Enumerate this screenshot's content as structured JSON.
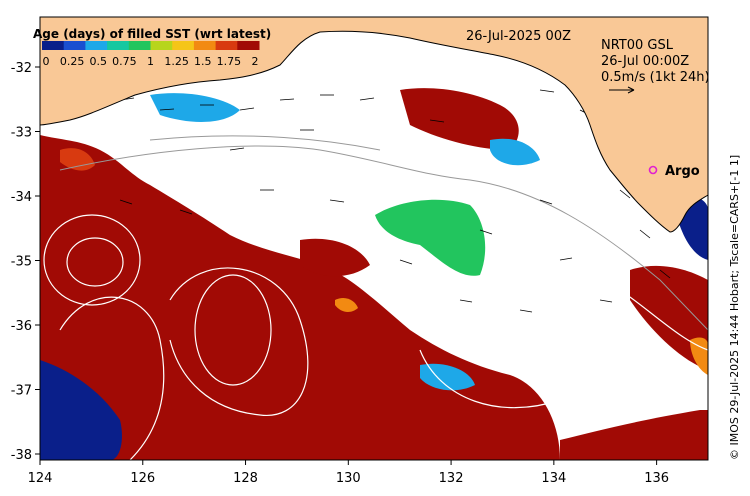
{
  "legend": {
    "title": "Age (days) of filled SST (wrt latest)",
    "ticks": [
      "0",
      "0.25",
      "0.5",
      "0.75",
      "1",
      "1.25",
      "1.5",
      "1.75",
      "2"
    ],
    "colors": [
      "#0a1f8a",
      "#1a4fd0",
      "#1ea8e8",
      "#16c8a0",
      "#22c55e",
      "#b7d51c",
      "#f5c518",
      "#f28a12",
      "#d83a10",
      "#a10a05"
    ]
  },
  "header": {
    "date": "26-Jul-2025 00Z",
    "product": "NRT00 GSL",
    "time": "26-Jul 00:00Z",
    "vector_scale": "0.5m/s (1kt 24h)"
  },
  "marker": {
    "label": "Argo",
    "color": "#e020d0"
  },
  "side_note": "© IMOS 29-Jul-2025 14:44 Hobart; Tscale=CARS+[-1 1]",
  "axes": {
    "x_ticks": [
      "124",
      "126",
      "128",
      "130",
      "132",
      "134",
      "136"
    ],
    "y_ticks": [
      "-32",
      "-33",
      "-34",
      "-35",
      "-36",
      "-37",
      "-38"
    ]
  },
  "colors": {
    "land": "#f9c896",
    "ocean_old": "#a10a05",
    "ocean_fresh": "#ffffff",
    "coast": "#000000"
  }
}
